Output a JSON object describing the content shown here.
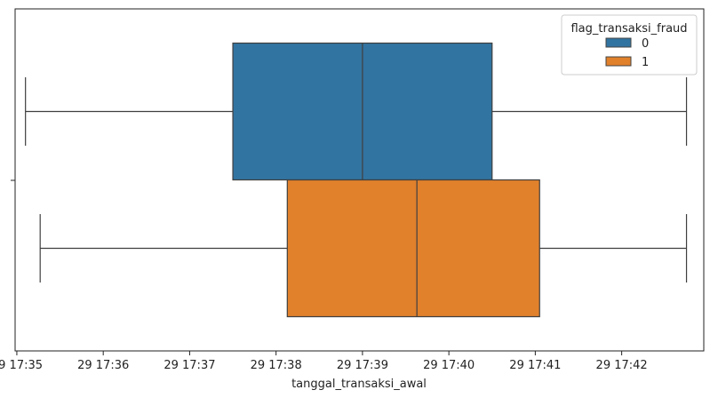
{
  "chart_data": {
    "type": "boxplot",
    "orientation": "horizontal",
    "xlabel": "tanggal_transaksi_awal",
    "x_ticks": [
      "29 17:35",
      "29 17:36",
      "29 17:37",
      "29 17:38",
      "29 17:39",
      "29 17:40",
      "29 17:41",
      "29 17:42"
    ],
    "x_unit": "minutes after 29 17:35",
    "xlim": [
      -0.02,
      7.95
    ],
    "legend": {
      "title": "flag_transaksi_fraud",
      "placement": "top-right"
    },
    "series": [
      {
        "name": "0",
        "color": "#3274a1",
        "whisker_low": 0.1,
        "q1": 2.5,
        "median": 4.0,
        "q3": 5.5,
        "whisker_high": 7.75
      },
      {
        "name": "1",
        "color": "#e1812c",
        "whisker_low": 0.27,
        "q1": 3.13,
        "median": 4.63,
        "q3": 6.05,
        "whisker_high": 7.75
      }
    ]
  }
}
